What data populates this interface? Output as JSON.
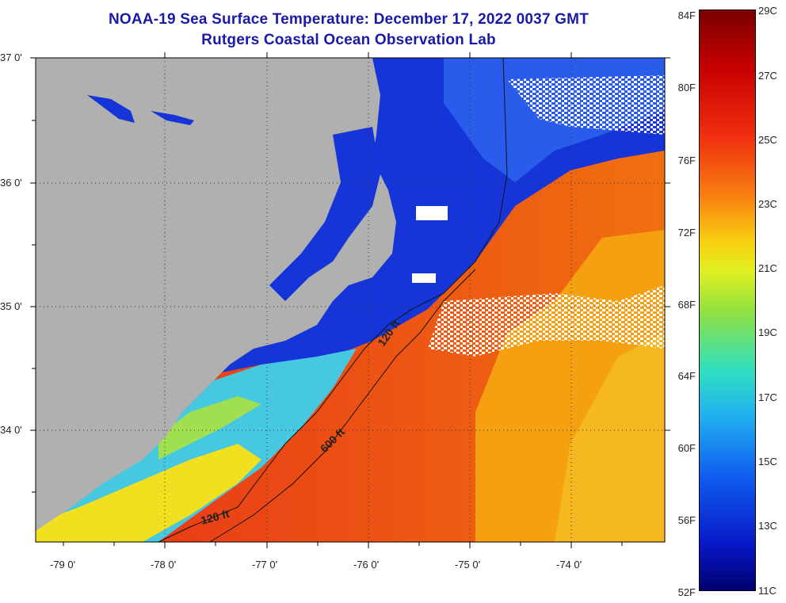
{
  "header": {
    "title_line1": "NOAA-19 Sea Surface Temperature:  December 17, 2022 0037 GMT",
    "title_line2": "Rutgers Coastal Ocean Observation Lab"
  },
  "map": {
    "lat_labels": [
      "37 0'",
      "36 0'",
      "35 0'",
      "34 0'"
    ],
    "lon_labels": [
      "-79 0'",
      "-78 0'",
      "-77 0'",
      "-76 0'",
      "-75 0'",
      "-74 0'"
    ],
    "contour_labels": [
      "120 ft",
      "600 ft",
      "120 ft"
    ],
    "colors": {
      "land": "#b0b0b0",
      "cloud": "#ffffff",
      "cold_water": "#1030d0",
      "warm_water": "#e82a10"
    }
  },
  "colorbar": {
    "fahrenheit": [
      "84F",
      "80F",
      "76F",
      "72F",
      "68F",
      "64F",
      "60F",
      "56F",
      "52F"
    ],
    "celsius": [
      "29C",
      "27C",
      "25C",
      "23C",
      "21C",
      "19C",
      "17C",
      "15C",
      "13C",
      "11C"
    ]
  }
}
